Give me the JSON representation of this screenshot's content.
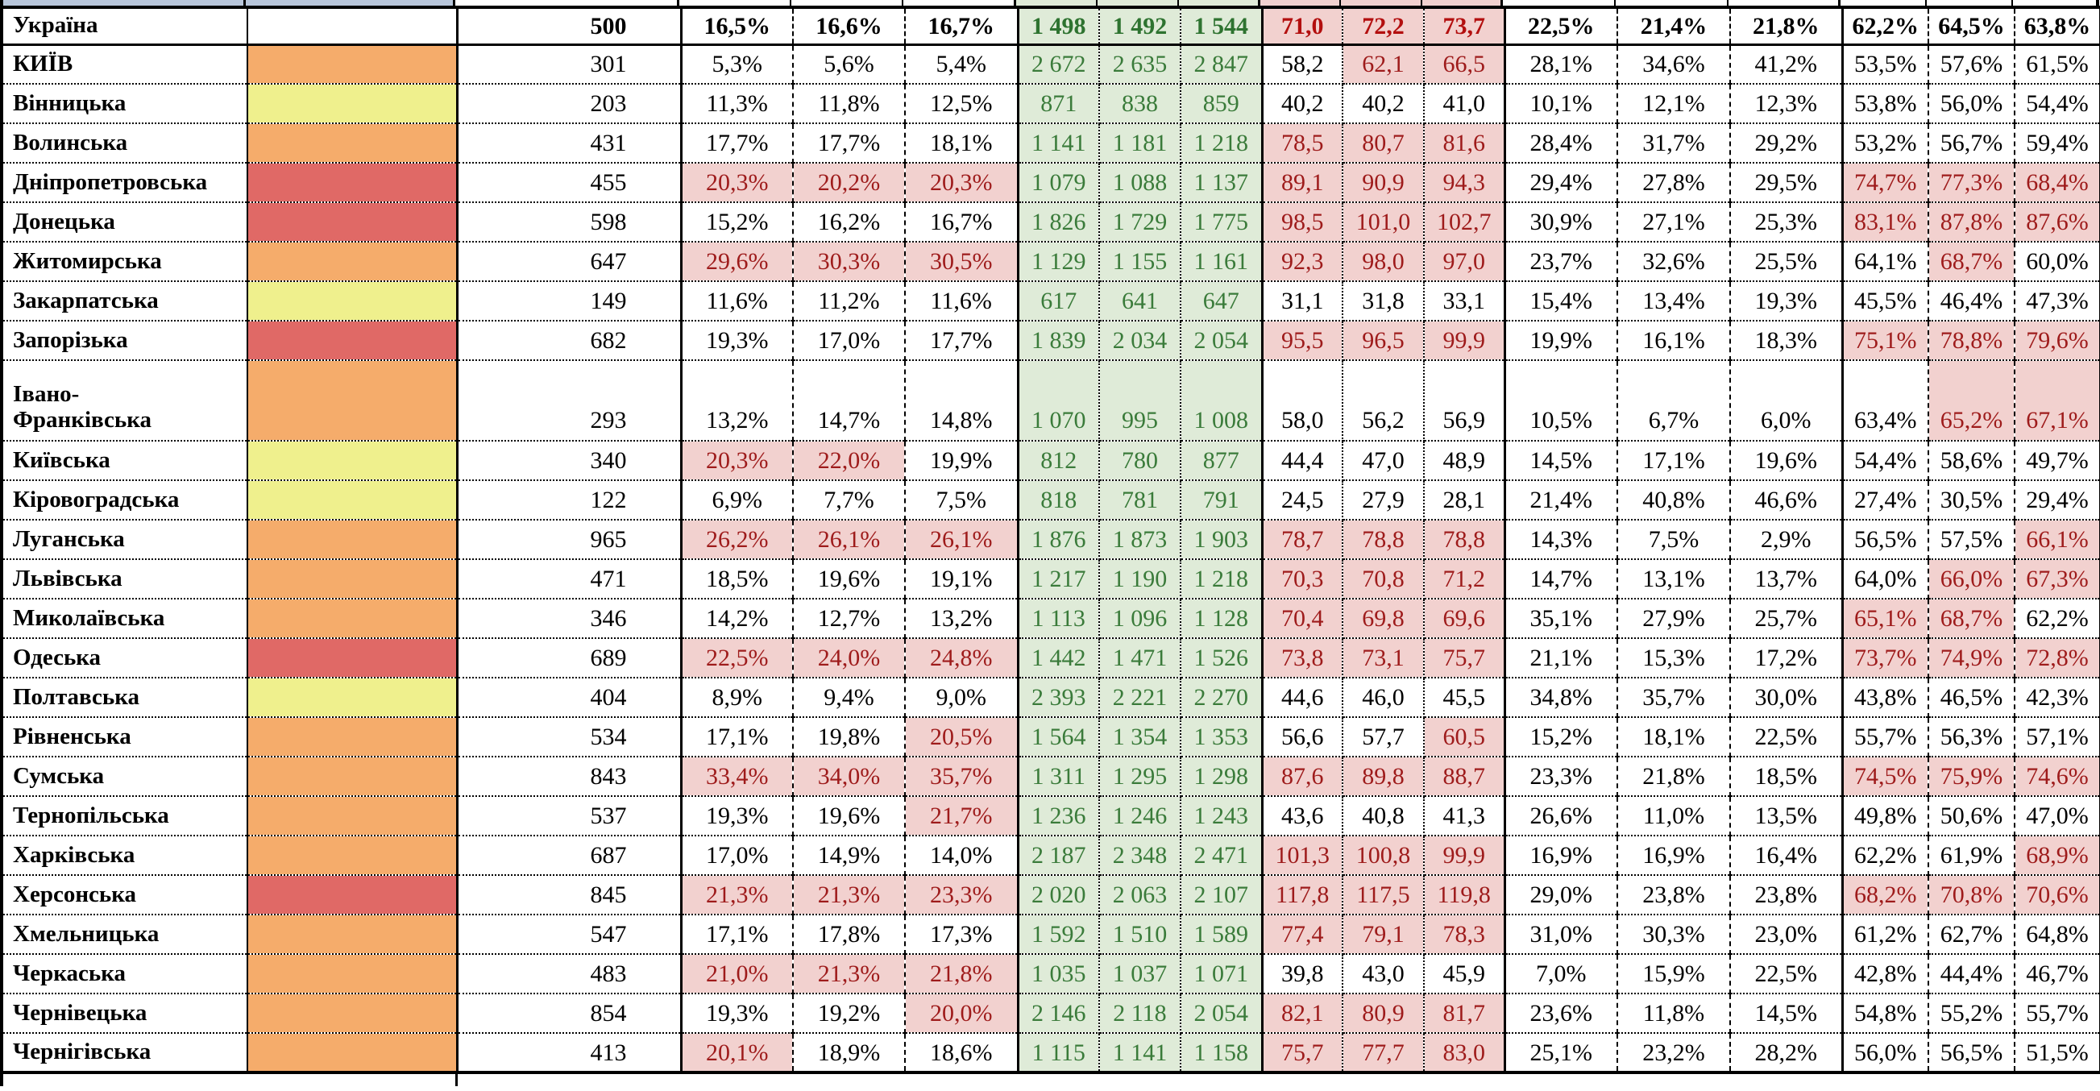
{
  "colors": {
    "orange": "#F5AC6B",
    "yellow": "#EFF08D",
    "red": "#E06966",
    "green_bg": "#DFEBD8",
    "green_text": "#3A7B3A",
    "green_text_bold": "#2E7330",
    "pink_bg": "#F2D1CF",
    "dark_red_text": "#9E1B1B",
    "summary_red_text": "#B30F0F",
    "sliver_blue": "#B8C6DB",
    "border_black": "#000000",
    "white": "#FFFFFF"
  },
  "table": {
    "summary": {
      "name": "Україна",
      "swatch": null,
      "value": "500",
      "pct1": [
        "16,5%",
        "16,6%",
        "16,7%"
      ],
      "pct1_hl": [
        0,
        0,
        0
      ],
      "green": [
        "1 498",
        "1 492",
        "1 544"
      ],
      "mid": [
        "71,0",
        "72,2",
        "73,7"
      ],
      "mid_hl": [
        1,
        1,
        1
      ],
      "pct2": [
        "22,5%",
        "21,4%",
        "21,8%"
      ],
      "pct3": [
        "62,2%",
        "64,5%",
        "63,8%"
      ],
      "pct3_hl": [
        0,
        0,
        0
      ]
    },
    "rows": [
      {
        "name": "КИЇВ",
        "swatch": "orange",
        "value": "301",
        "pct1": [
          "5,3%",
          "5,6%",
          "5,4%"
        ],
        "pct1_hl": [
          0,
          0,
          0
        ],
        "green": [
          "2 672",
          "2 635",
          "2 847"
        ],
        "mid": [
          "58,2",
          "62,1",
          "66,5"
        ],
        "mid_hl": [
          0,
          1,
          1
        ],
        "pct2": [
          "28,1%",
          "34,6%",
          "41,2%"
        ],
        "pct3": [
          "53,5%",
          "57,6%",
          "61,5%"
        ],
        "pct3_hl": [
          0,
          0,
          0
        ]
      },
      {
        "name": "Вінницька",
        "swatch": "yellow",
        "value": "203",
        "pct1": [
          "11,3%",
          "11,8%",
          "12,5%"
        ],
        "pct1_hl": [
          0,
          0,
          0
        ],
        "green": [
          "871",
          "838",
          "859"
        ],
        "mid": [
          "40,2",
          "40,2",
          "41,0"
        ],
        "mid_hl": [
          0,
          0,
          0
        ],
        "pct2": [
          "10,1%",
          "12,1%",
          "12,3%"
        ],
        "pct3": [
          "53,8%",
          "56,0%",
          "54,4%"
        ],
        "pct3_hl": [
          0,
          0,
          0
        ]
      },
      {
        "name": "Волинська",
        "swatch": "orange",
        "value": "431",
        "pct1": [
          "17,7%",
          "17,7%",
          "18,1%"
        ],
        "pct1_hl": [
          0,
          0,
          0
        ],
        "green": [
          "1 141",
          "1 181",
          "1 218"
        ],
        "mid": [
          "78,5",
          "80,7",
          "81,6"
        ],
        "mid_hl": [
          1,
          1,
          1
        ],
        "pct2": [
          "28,4%",
          "31,7%",
          "29,2%"
        ],
        "pct3": [
          "53,2%",
          "56,7%",
          "59,4%"
        ],
        "pct3_hl": [
          0,
          0,
          0
        ]
      },
      {
        "name": "Дніпропетровська",
        "swatch": "red",
        "value": "455",
        "pct1": [
          "20,3%",
          "20,2%",
          "20,3%"
        ],
        "pct1_hl": [
          1,
          1,
          1
        ],
        "green": [
          "1 079",
          "1 088",
          "1 137"
        ],
        "mid": [
          "89,1",
          "90,9",
          "94,3"
        ],
        "mid_hl": [
          1,
          1,
          1
        ],
        "pct2": [
          "29,4%",
          "27,8%",
          "29,5%"
        ],
        "pct3": [
          "74,7%",
          "77,3%",
          "68,4%"
        ],
        "pct3_hl": [
          1,
          1,
          1
        ]
      },
      {
        "name": "Донецька",
        "swatch": "red",
        "value": "598",
        "pct1": [
          "15,2%",
          "16,2%",
          "16,7%"
        ],
        "pct1_hl": [
          0,
          0,
          0
        ],
        "green": [
          "1 826",
          "1 729",
          "1 775"
        ],
        "mid": [
          "98,5",
          "101,0",
          "102,7"
        ],
        "mid_hl": [
          1,
          1,
          1
        ],
        "pct2": [
          "30,9%",
          "27,1%",
          "25,3%"
        ],
        "pct3": [
          "83,1%",
          "87,8%",
          "87,6%"
        ],
        "pct3_hl": [
          1,
          1,
          1
        ]
      },
      {
        "name": "Житомирська",
        "swatch": "orange",
        "value": "647",
        "pct1": [
          "29,6%",
          "30,3%",
          "30,5%"
        ],
        "pct1_hl": [
          1,
          1,
          1
        ],
        "green": [
          "1 129",
          "1 155",
          "1 161"
        ],
        "mid": [
          "92,3",
          "98,0",
          "97,0"
        ],
        "mid_hl": [
          1,
          1,
          1
        ],
        "pct2": [
          "23,7%",
          "32,6%",
          "25,5%"
        ],
        "pct3": [
          "64,1%",
          "68,7%",
          "60,0%"
        ],
        "pct3_hl": [
          0,
          1,
          0
        ]
      },
      {
        "name": "Закарпатська",
        "swatch": "yellow",
        "value": "149",
        "pct1": [
          "11,6%",
          "11,2%",
          "11,6%"
        ],
        "pct1_hl": [
          0,
          0,
          0
        ],
        "green": [
          "617",
          "641",
          "647"
        ],
        "mid": [
          "31,1",
          "31,8",
          "33,1"
        ],
        "mid_hl": [
          0,
          0,
          0
        ],
        "pct2": [
          "15,4%",
          "13,4%",
          "19,3%"
        ],
        "pct3": [
          "45,5%",
          "46,4%",
          "47,3%"
        ],
        "pct3_hl": [
          0,
          0,
          0
        ]
      },
      {
        "name": "Запорізька",
        "swatch": "red",
        "value": "682",
        "pct1": [
          "19,3%",
          "17,0%",
          "17,7%"
        ],
        "pct1_hl": [
          0,
          0,
          0
        ],
        "green": [
          "1 839",
          "2 034",
          "2 054"
        ],
        "mid": [
          "95,5",
          "96,5",
          "99,9"
        ],
        "mid_hl": [
          1,
          1,
          1
        ],
        "pct2": [
          "19,9%",
          "16,1%",
          "18,3%"
        ],
        "pct3": [
          "75,1%",
          "78,8%",
          "79,6%"
        ],
        "pct3_hl": [
          1,
          1,
          1
        ]
      },
      {
        "name": "Івано-Франківська",
        "name_display": "Івано-\nФранківська",
        "tall": true,
        "swatch": "orange",
        "value": "293",
        "pct1": [
          "13,2%",
          "14,7%",
          "14,8%"
        ],
        "pct1_hl": [
          0,
          0,
          0
        ],
        "green": [
          "1 070",
          "995",
          "1 008"
        ],
        "mid": [
          "58,0",
          "56,2",
          "56,9"
        ],
        "mid_hl": [
          0,
          0,
          0
        ],
        "pct2": [
          "10,5%",
          "6,7%",
          "6,0%"
        ],
        "pct3": [
          "63,4%",
          "65,2%",
          "67,1%"
        ],
        "pct3_hl": [
          0,
          1,
          1
        ]
      },
      {
        "name": "Київська",
        "swatch": "yellow",
        "value": "340",
        "pct1": [
          "20,3%",
          "22,0%",
          "19,9%"
        ],
        "pct1_hl": [
          1,
          1,
          0
        ],
        "green": [
          "812",
          "780",
          "877"
        ],
        "mid": [
          "44,4",
          "47,0",
          "48,9"
        ],
        "mid_hl": [
          0,
          0,
          0
        ],
        "pct2": [
          "14,5%",
          "17,1%",
          "19,6%"
        ],
        "pct3": [
          "54,4%",
          "58,6%",
          "49,7%"
        ],
        "pct3_hl": [
          0,
          0,
          0
        ]
      },
      {
        "name": "Кіровоградська",
        "swatch": "yellow",
        "value": "122",
        "pct1": [
          "6,9%",
          "7,7%",
          "7,5%"
        ],
        "pct1_hl": [
          0,
          0,
          0
        ],
        "green": [
          "818",
          "781",
          "791"
        ],
        "mid": [
          "24,5",
          "27,9",
          "28,1"
        ],
        "mid_hl": [
          0,
          0,
          0
        ],
        "pct2": [
          "21,4%",
          "40,8%",
          "46,6%"
        ],
        "pct3": [
          "27,4%",
          "30,5%",
          "29,4%"
        ],
        "pct3_hl": [
          0,
          0,
          0
        ]
      },
      {
        "name": "Луганська",
        "swatch": "orange",
        "value": "965",
        "pct1": [
          "26,2%",
          "26,1%",
          "26,1%"
        ],
        "pct1_hl": [
          1,
          1,
          1
        ],
        "green": [
          "1 876",
          "1 873",
          "1 903"
        ],
        "mid": [
          "78,7",
          "78,8",
          "78,8"
        ],
        "mid_hl": [
          1,
          1,
          1
        ],
        "pct2": [
          "14,3%",
          "7,5%",
          "2,9%"
        ],
        "pct3": [
          "56,5%",
          "57,5%",
          "66,1%"
        ],
        "pct3_hl": [
          0,
          0,
          1
        ]
      },
      {
        "name": "Львівська",
        "swatch": "orange",
        "value": "471",
        "pct1": [
          "18,5%",
          "19,6%",
          "19,1%"
        ],
        "pct1_hl": [
          0,
          0,
          0
        ],
        "green": [
          "1 217",
          "1 190",
          "1 218"
        ],
        "mid": [
          "70,3",
          "70,8",
          "71,2"
        ],
        "mid_hl": [
          1,
          1,
          1
        ],
        "pct2": [
          "14,7%",
          "13,1%",
          "13,7%"
        ],
        "pct3": [
          "64,0%",
          "66,0%",
          "67,3%"
        ],
        "pct3_hl": [
          0,
          1,
          1
        ]
      },
      {
        "name": "Миколаївська",
        "swatch": "orange",
        "value": "346",
        "pct1": [
          "14,2%",
          "12,7%",
          "13,2%"
        ],
        "pct1_hl": [
          0,
          0,
          0
        ],
        "green": [
          "1 113",
          "1 096",
          "1 128"
        ],
        "mid": [
          "70,4",
          "69,8",
          "69,6"
        ],
        "mid_hl": [
          1,
          1,
          1
        ],
        "pct2": [
          "35,1%",
          "27,9%",
          "25,7%"
        ],
        "pct3": [
          "65,1%",
          "68,7%",
          "62,2%"
        ],
        "pct3_hl": [
          1,
          1,
          0
        ]
      },
      {
        "name": "Одеська",
        "swatch": "red",
        "value": "689",
        "pct1": [
          "22,5%",
          "24,0%",
          "24,8%"
        ],
        "pct1_hl": [
          1,
          1,
          1
        ],
        "green": [
          "1 442",
          "1 471",
          "1 526"
        ],
        "mid": [
          "73,8",
          "73,1",
          "75,7"
        ],
        "mid_hl": [
          1,
          1,
          1
        ],
        "pct2": [
          "21,1%",
          "15,3%",
          "17,2%"
        ],
        "pct3": [
          "73,7%",
          "74,9%",
          "72,8%"
        ],
        "pct3_hl": [
          1,
          1,
          1
        ]
      },
      {
        "name": "Полтавська",
        "swatch": "yellow",
        "value": "404",
        "pct1": [
          "8,9%",
          "9,4%",
          "9,0%"
        ],
        "pct1_hl": [
          0,
          0,
          0
        ],
        "green": [
          "2 393",
          "2 221",
          "2 270"
        ],
        "mid": [
          "44,6",
          "46,0",
          "45,5"
        ],
        "mid_hl": [
          0,
          0,
          0
        ],
        "pct2": [
          "34,8%",
          "35,7%",
          "30,0%"
        ],
        "pct3": [
          "43,8%",
          "46,5%",
          "42,3%"
        ],
        "pct3_hl": [
          0,
          0,
          0
        ]
      },
      {
        "name": "Рівненська",
        "swatch": "orange",
        "value": "534",
        "pct1": [
          "17,1%",
          "19,8%",
          "20,5%"
        ],
        "pct1_hl": [
          0,
          0,
          1
        ],
        "green": [
          "1 564",
          "1 354",
          "1 353"
        ],
        "mid": [
          "56,6",
          "57,7",
          "60,5"
        ],
        "mid_hl": [
          0,
          0,
          1
        ],
        "pct2": [
          "15,2%",
          "18,1%",
          "22,5%"
        ],
        "pct3": [
          "55,7%",
          "56,3%",
          "57,1%"
        ],
        "pct3_hl": [
          0,
          0,
          0
        ]
      },
      {
        "name": "Сумська",
        "swatch": "orange",
        "value": "843",
        "pct1": [
          "33,4%",
          "34,0%",
          "35,7%"
        ],
        "pct1_hl": [
          1,
          1,
          1
        ],
        "green": [
          "1 311",
          "1 295",
          "1 298"
        ],
        "mid": [
          "87,6",
          "89,8",
          "88,7"
        ],
        "mid_hl": [
          1,
          1,
          1
        ],
        "pct2": [
          "23,3%",
          "21,8%",
          "18,5%"
        ],
        "pct3": [
          "74,5%",
          "75,9%",
          "74,6%"
        ],
        "pct3_hl": [
          1,
          1,
          1
        ]
      },
      {
        "name": "Тернопільська",
        "swatch": "orange",
        "value": "537",
        "pct1": [
          "19,3%",
          "19,6%",
          "21,7%"
        ],
        "pct1_hl": [
          0,
          0,
          1
        ],
        "green": [
          "1 236",
          "1 246",
          "1 243"
        ],
        "mid": [
          "43,6",
          "40,8",
          "41,3"
        ],
        "mid_hl": [
          0,
          0,
          0
        ],
        "pct2": [
          "26,6%",
          "11,0%",
          "13,5%"
        ],
        "pct3": [
          "49,8%",
          "50,6%",
          "47,0%"
        ],
        "pct3_hl": [
          0,
          0,
          0
        ]
      },
      {
        "name": "Харківська",
        "swatch": "orange",
        "value": "687",
        "pct1": [
          "17,0%",
          "14,9%",
          "14,0%"
        ],
        "pct1_hl": [
          0,
          0,
          0
        ],
        "green": [
          "2 187",
          "2 348",
          "2 471"
        ],
        "mid": [
          "101,3",
          "100,8",
          "99,9"
        ],
        "mid_hl": [
          1,
          1,
          1
        ],
        "pct2": [
          "16,9%",
          "16,9%",
          "16,4%"
        ],
        "pct3": [
          "62,2%",
          "61,9%",
          "68,9%"
        ],
        "pct3_hl": [
          0,
          0,
          1
        ]
      },
      {
        "name": "Херсонська",
        "swatch": "red",
        "value": "845",
        "pct1": [
          "21,3%",
          "21,3%",
          "23,3%"
        ],
        "pct1_hl": [
          1,
          1,
          1
        ],
        "green": [
          "2 020",
          "2 063",
          "2 107"
        ],
        "mid": [
          "117,8",
          "117,5",
          "119,8"
        ],
        "mid_hl": [
          1,
          1,
          1
        ],
        "pct2": [
          "29,0%",
          "23,8%",
          "23,8%"
        ],
        "pct3": [
          "68,2%",
          "70,8%",
          "70,6%"
        ],
        "pct3_hl": [
          1,
          1,
          1
        ]
      },
      {
        "name": "Хмельницька",
        "swatch": "orange",
        "value": "547",
        "pct1": [
          "17,1%",
          "17,8%",
          "17,3%"
        ],
        "pct1_hl": [
          0,
          0,
          0
        ],
        "green": [
          "1 592",
          "1 510",
          "1 589"
        ],
        "mid": [
          "77,4",
          "79,1",
          "78,3"
        ],
        "mid_hl": [
          1,
          1,
          1
        ],
        "pct2": [
          "31,0%",
          "30,3%",
          "23,0%"
        ],
        "pct3": [
          "61,2%",
          "62,7%",
          "64,8%"
        ],
        "pct3_hl": [
          0,
          0,
          0
        ]
      },
      {
        "name": "Черкаська",
        "swatch": "orange",
        "value": "483",
        "pct1": [
          "21,0%",
          "21,3%",
          "21,8%"
        ],
        "pct1_hl": [
          1,
          1,
          1
        ],
        "green": [
          "1 035",
          "1 037",
          "1 071"
        ],
        "mid": [
          "39,8",
          "43,0",
          "45,9"
        ],
        "mid_hl": [
          0,
          0,
          0
        ],
        "pct2": [
          "7,0%",
          "15,9%",
          "22,5%"
        ],
        "pct3": [
          "42,8%",
          "44,4%",
          "46,7%"
        ],
        "pct3_hl": [
          0,
          0,
          0
        ]
      },
      {
        "name": "Чернівецька",
        "swatch": "orange",
        "value": "854",
        "pct1": [
          "19,3%",
          "19,2%",
          "20,0%"
        ],
        "pct1_hl": [
          0,
          0,
          1
        ],
        "green": [
          "2 146",
          "2 118",
          "2 054"
        ],
        "mid": [
          "82,1",
          "80,9",
          "81,7"
        ],
        "mid_hl": [
          1,
          1,
          1
        ],
        "pct2": [
          "23,6%",
          "11,8%",
          "14,5%"
        ],
        "pct3": [
          "54,8%",
          "55,2%",
          "55,7%"
        ],
        "pct3_hl": [
          0,
          0,
          0
        ]
      },
      {
        "name": "Чернігівська",
        "swatch": "orange",
        "value": "413",
        "pct1": [
          "20,1%",
          "18,9%",
          "18,6%"
        ],
        "pct1_hl": [
          1,
          0,
          0
        ],
        "green": [
          "1 115",
          "1 141",
          "1 158"
        ],
        "mid": [
          "75,7",
          "77,7",
          "83,0"
        ],
        "mid_hl": [
          1,
          1,
          1
        ],
        "pct2": [
          "25,1%",
          "23,2%",
          "28,2%"
        ],
        "pct3": [
          "56,0%",
          "56,5%",
          "51,5%"
        ],
        "pct3_hl": [
          0,
          0,
          0
        ]
      }
    ]
  }
}
